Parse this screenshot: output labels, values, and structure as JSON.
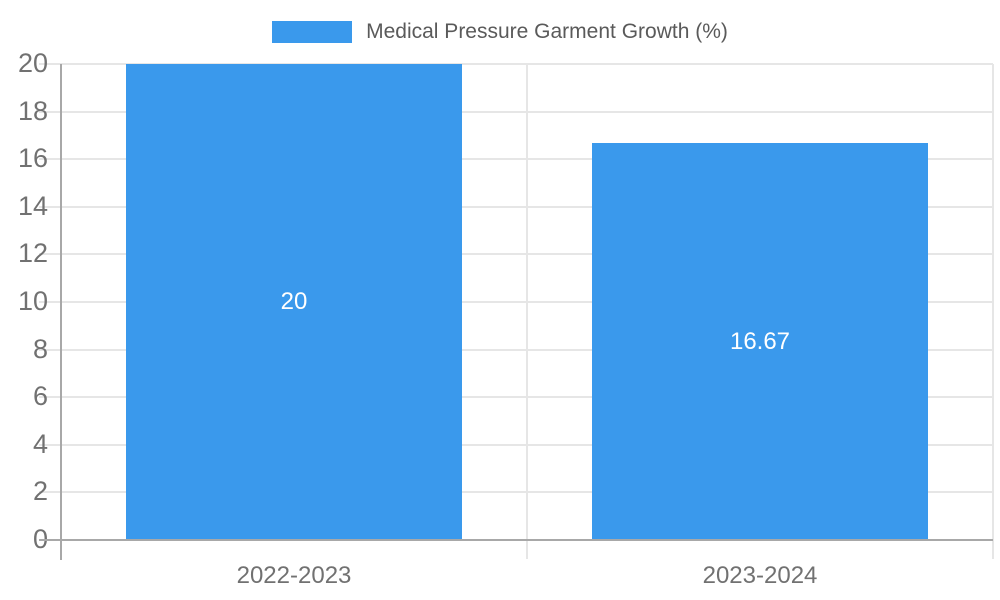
{
  "legend": {
    "label": "Medical Pressure Garment Growth (%)"
  },
  "chart_data": {
    "type": "bar",
    "title": "Medical Pressure Garment Growth (%)",
    "categories": [
      "2022-2023",
      "2023-2024"
    ],
    "values": [
      20,
      16.67
    ],
    "value_labels": [
      "20",
      "16.67"
    ],
    "series_name": "Medical Pressure Garment Growth (%)",
    "xlabel": "",
    "ylabel": "",
    "ylim": [
      0,
      20
    ],
    "ytick_step": 2,
    "ytick_labels": [
      "0",
      "2",
      "4",
      "6",
      "8",
      "10",
      "12",
      "14",
      "16",
      "18",
      "20"
    ],
    "grid": "horizontal gridlines on, category boundary verticals on",
    "legend_position": "top-center",
    "colors": {
      "bar": "#3a99ec",
      "gridline": "#e6e6e6",
      "axis": "#a8a8a8",
      "tick_label": "#717171",
      "legend_text": "#5a5a5a",
      "value_label": "#ffffff",
      "background": "#ffffff"
    }
  }
}
